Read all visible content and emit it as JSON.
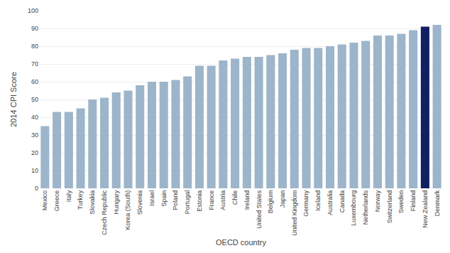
{
  "chart_data": {
    "type": "bar",
    "categories": [
      "Mexico",
      "Greece",
      "Italy",
      "Turkey",
      "Slovakia",
      "Czech Republic",
      "Hungary",
      "Korea (South)",
      "Slovenia",
      "Israel",
      "Spain",
      "Poland",
      "Portugal",
      "Estonia",
      "France",
      "Austria",
      "Chile",
      "Ireland",
      "United States",
      "Belgium",
      "Japan",
      "United Kingdom",
      "Germany",
      "Iceland",
      "Australia",
      "Canada",
      "Luxembourg",
      "Netherlands",
      "Norway",
      "Switzerland",
      "Sweden",
      "Finland",
      "New Zealand",
      "Denmark"
    ],
    "values": [
      35,
      43,
      43,
      45,
      50,
      51,
      54,
      55,
      58,
      60,
      60,
      61,
      63,
      69,
      69,
      72,
      73,
      74,
      74,
      75,
      76,
      78,
      79,
      79,
      80,
      81,
      82,
      83,
      86,
      86,
      87,
      89,
      91,
      92
    ],
    "colors": [
      "#9db5ca",
      "#9db5ca",
      "#9db5ca",
      "#9db5ca",
      "#9db5ca",
      "#9db5ca",
      "#9db5ca",
      "#9db5ca",
      "#9db5ca",
      "#9db5ca",
      "#9db5ca",
      "#9db5ca",
      "#9db5ca",
      "#9db5ca",
      "#9db5ca",
      "#9db5ca",
      "#9db5ca",
      "#9db5ca",
      "#9db5ca",
      "#9db5ca",
      "#9db5ca",
      "#9db5ca",
      "#9db5ca",
      "#9db5ca",
      "#9db5ca",
      "#9db5ca",
      "#9db5ca",
      "#9db5ca",
      "#9db5ca",
      "#9db5ca",
      "#9db5ca",
      "#9db5ca",
      "#102060",
      "#9db5ca"
    ],
    "xlabel": "OECD country",
    "ylabel": "2014 CPI Score",
    "ylim": [
      0,
      100
    ],
    "yticks": [
      0,
      10,
      20,
      30,
      40,
      50,
      60,
      70,
      80,
      90,
      100
    ],
    "grid": true
  }
}
